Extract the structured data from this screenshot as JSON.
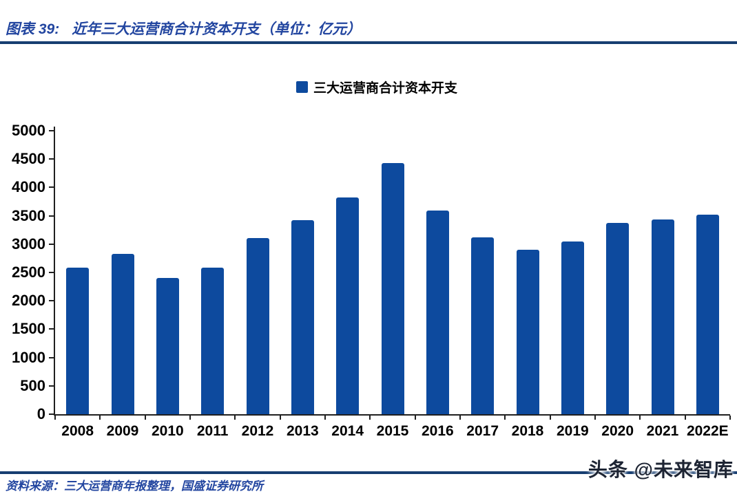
{
  "header": {
    "figure_label": "图表 39:",
    "title": "近年三大运营商合计资本开支（单位：亿元）"
  },
  "legend": {
    "label": "三大运营商合计资本开支"
  },
  "chart_data": {
    "type": "bar",
    "title": "三大运营商合计资本开支",
    "unit": "亿元",
    "categories": [
      "2008",
      "2009",
      "2010",
      "2011",
      "2012",
      "2013",
      "2014",
      "2015",
      "2016",
      "2017",
      "2018",
      "2019",
      "2020",
      "2021",
      "2022E"
    ],
    "values": [
      2590,
      2830,
      2400,
      2580,
      3110,
      3420,
      3820,
      4430,
      3590,
      3120,
      2900,
      3050,
      3370,
      3430,
      3520
    ],
    "xlabel": "",
    "ylabel": "",
    "ylim": [
      0,
      5000
    ],
    "ytick_step": 500,
    "grid": false,
    "legend_position": "top-center",
    "bar_color": "#0D4A9E",
    "axis_color": "#1f1f1f"
  },
  "footer": {
    "source": "资料来源：三大运营商年报整理，国盛证券研究所"
  },
  "watermark": {
    "text": "头条 @未来智库"
  },
  "colors": {
    "accent_blue": "#2346A0",
    "bar_blue": "#0D4A9E",
    "divider_navy": "#173E71",
    "axis_black": "#1f1f1f",
    "watermark_dark": "#1d2433"
  }
}
